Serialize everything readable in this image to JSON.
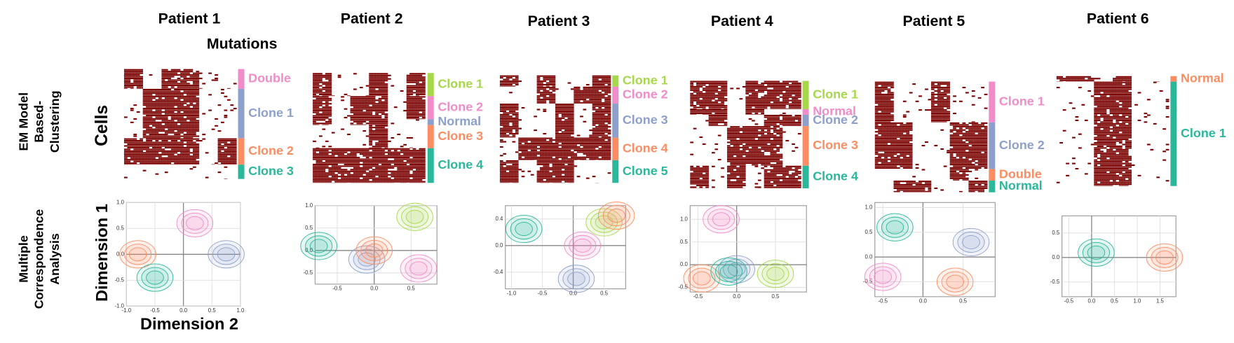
{
  "row_labels": {
    "em": [
      "EM Model",
      "Based-",
      "Clustering"
    ],
    "mca": [
      "Multiple",
      "Correspondence",
      "Analysis"
    ]
  },
  "axis_labels": {
    "mutations": "Mutations",
    "cells": "Cells",
    "dim1": "Dimension 1",
    "dim2": "Dimension 2"
  },
  "patients": [
    {
      "name": "Patient 1",
      "clones": [
        {
          "label": "Double",
          "color": "#f08cc8",
          "share": 0.18,
          "center": [
            0.2,
            0.6
          ]
        },
        {
          "label": "Clone 1",
          "color": "#8da0cb",
          "share": 0.45,
          "center": [
            0.75,
            0.0
          ]
        },
        {
          "label": "Clone 2",
          "color": "#fc8d62",
          "share": 0.24,
          "center": [
            -0.8,
            0.0
          ]
        },
        {
          "label": "Clone 3",
          "color": "#2ab79a",
          "share": 0.13,
          "center": [
            -0.5,
            -0.45
          ]
        }
      ],
      "xlim": [
        -1.0,
        1.0
      ],
      "ylim": [
        -1.0,
        1.0
      ],
      "xticks": [
        {
          "value": -1,
          "label": "-1.0"
        },
        -0.5,
        {
          "value": 0,
          "label": "0.0"
        },
        0.5,
        {
          "value": 1,
          "label": "1.0"
        }
      ],
      "yticks": [
        {
          "value": -1,
          "label": "-1.0"
        },
        -0.5,
        {
          "value": 0,
          "label": "0.0"
        },
        0.5,
        {
          "value": 1,
          "label": "1.0"
        }
      ]
    },
    {
      "name": "Patient 2",
      "clones": [
        {
          "label": "Clone 1",
          "color": "#a6d84a",
          "share": 0.2,
          "center": [
            0.55,
            0.75
          ]
        },
        {
          "label": "Clone 2",
          "color": "#f08cc8",
          "share": 0.2,
          "center": [
            0.6,
            -0.4
          ]
        },
        {
          "label": "Normal",
          "color": "#8da0cb",
          "share": 0.05,
          "center": [
            -0.1,
            -0.2
          ]
        },
        {
          "label": "Clone 3",
          "color": "#fc8d62",
          "share": 0.2,
          "center": [
            0.0,
            0.0
          ]
        },
        {
          "label": "Clone 4",
          "color": "#2ab79a",
          "share": 0.3,
          "center": [
            -0.75,
            0.1
          ]
        }
      ],
      "xlim": [
        -0.8,
        0.85
      ],
      "ylim": [
        -0.75,
        1.0
      ],
      "xticks": [
        -0.5,
        {
          "value": 0,
          "label": "0.0"
        },
        0.5
      ],
      "yticks": [
        -0.5,
        {
          "value": 0,
          "label": "0.0"
        },
        0.5,
        {
          "value": 1,
          "label": "1.0"
        }
      ]
    },
    {
      "name": "Patient 3",
      "clones": [
        {
          "label": "Clone 1",
          "color": "#a6d84a",
          "share": 0.1,
          "center": [
            0.5,
            0.35
          ]
        },
        {
          "label": "Clone 2",
          "color": "#f08cc8",
          "share": 0.15,
          "center": [
            0.15,
            0.0
          ]
        },
        {
          "label": "Clone 3",
          "color": "#8da0cb",
          "share": 0.3,
          "center": [
            0.05,
            -0.5
          ]
        },
        {
          "label": "Clone 4",
          "color": "#fc8d62",
          "share": 0.2,
          "center": [
            0.7,
            0.45
          ]
        },
        {
          "label": "Clone 5",
          "color": "#2ab79a",
          "share": 0.2,
          "center": [
            -0.8,
            0.25
          ]
        }
      ],
      "xlim": [
        -1.1,
        0.85
      ],
      "ylim": [
        -0.65,
        0.6
      ],
      "xticks": [
        {
          "value": -1,
          "label": "-1.0"
        },
        -0.5,
        {
          "value": 0,
          "label": "0.0"
        },
        0.5
      ],
      "yticks": [
        -0.4,
        {
          "value": 0,
          "label": "0.0"
        },
        0.4
      ]
    },
    {
      "name": "Patient 4",
      "clones": [
        {
          "label": "Clone 1",
          "color": "#a6d84a",
          "share": 0.25,
          "center": [
            0.5,
            -0.2
          ]
        },
        {
          "label": "Normal",
          "color": "#f08cc8",
          "share": 0.05,
          "center": [
            -0.2,
            1.0
          ]
        },
        {
          "label": "Clone 2",
          "color": "#8da0cb",
          "share": 0.1,
          "center": [
            0.0,
            -0.1
          ]
        },
        {
          "label": "Clone 3",
          "color": "#fc8d62",
          "share": 0.35,
          "center": [
            -0.45,
            -0.3
          ]
        },
        {
          "label": "Clone 4",
          "color": "#2ab79a",
          "share": 0.2,
          "center": [
            -0.1,
            -0.15
          ]
        }
      ],
      "xlim": [
        -0.6,
        0.9
      ],
      "ylim": [
        -0.6,
        1.3
      ],
      "xticks": [
        -0.5,
        {
          "value": 0,
          "label": "0.0"
        },
        0.5
      ],
      "yticks": [
        -0.5,
        {
          "value": 0,
          "label": "0.0"
        },
        0.5,
        {
          "value": 1,
          "label": "1.0"
        }
      ]
    },
    {
      "name": "Patient 5",
      "clones": [
        {
          "label": "Clone 1",
          "color": "#f08cc8",
          "share": 0.35,
          "center": [
            -0.5,
            -0.4
          ]
        },
        {
          "label": "Clone 2",
          "color": "#8da0cb",
          "share": 0.4,
          "center": [
            0.6,
            0.3
          ]
        },
        {
          "label": "Double",
          "color": "#fc8d62",
          "share": 0.1,
          "center": [
            0.4,
            -0.5
          ]
        },
        {
          "label": "Normal",
          "color": "#2ab79a",
          "share": 0.1,
          "center": [
            -0.35,
            0.6
          ]
        }
      ],
      "xlim": [
        -0.6,
        0.9
      ],
      "ylim": [
        -0.8,
        1.1
      ],
      "xticks": [
        -0.5,
        {
          "value": 0,
          "label": "0.0"
        },
        0.5
      ],
      "yticks": [
        -0.5,
        {
          "value": 0,
          "label": "0.0"
        },
        0.5,
        {
          "value": 1,
          "label": "1.0"
        }
      ]
    },
    {
      "name": "Patient 6",
      "clones": [
        {
          "label": "Normal",
          "color": "#fc8d62",
          "share": 0.05,
          "center": [
            1.6,
            0.0
          ]
        },
        {
          "label": "Clone 1",
          "color": "#2ab79a",
          "share": 0.95,
          "center": [
            0.1,
            0.1
          ]
        }
      ],
      "xlim": [
        -0.65,
        1.85
      ],
      "ylim": [
        -0.8,
        0.85
      ],
      "xticks": [
        -0.5,
        {
          "value": 0,
          "label": "0.0"
        },
        0.5,
        {
          "value": 1,
          "label": "1.0"
        },
        1.5
      ],
      "yticks": [
        -0.5,
        {
          "value": 0,
          "label": "0.0"
        },
        0.5
      ]
    }
  ]
}
